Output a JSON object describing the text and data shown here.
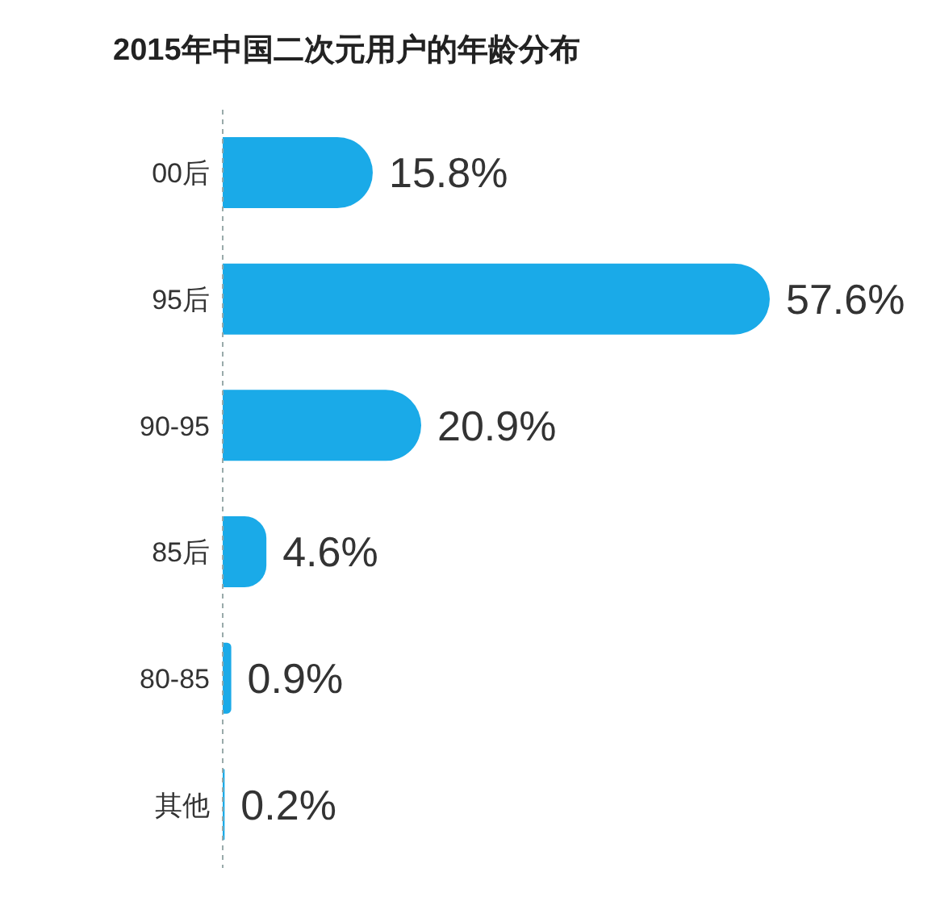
{
  "chart_data": {
    "type": "bar",
    "orientation": "horizontal",
    "title": "2015年中国二次元用户的年龄分布",
    "categories": [
      "00后",
      "95后",
      "90-95",
      "85后",
      "80-85",
      "其他"
    ],
    "values": [
      15.8,
      57.6,
      20.9,
      4.6,
      0.9,
      0.2
    ],
    "value_labels": [
      "15.8%",
      "57.6%",
      "20.9%",
      "4.6%",
      "0.9%",
      "0.2%"
    ],
    "color": "#1aaae8",
    "grid": false,
    "legend": false
  }
}
